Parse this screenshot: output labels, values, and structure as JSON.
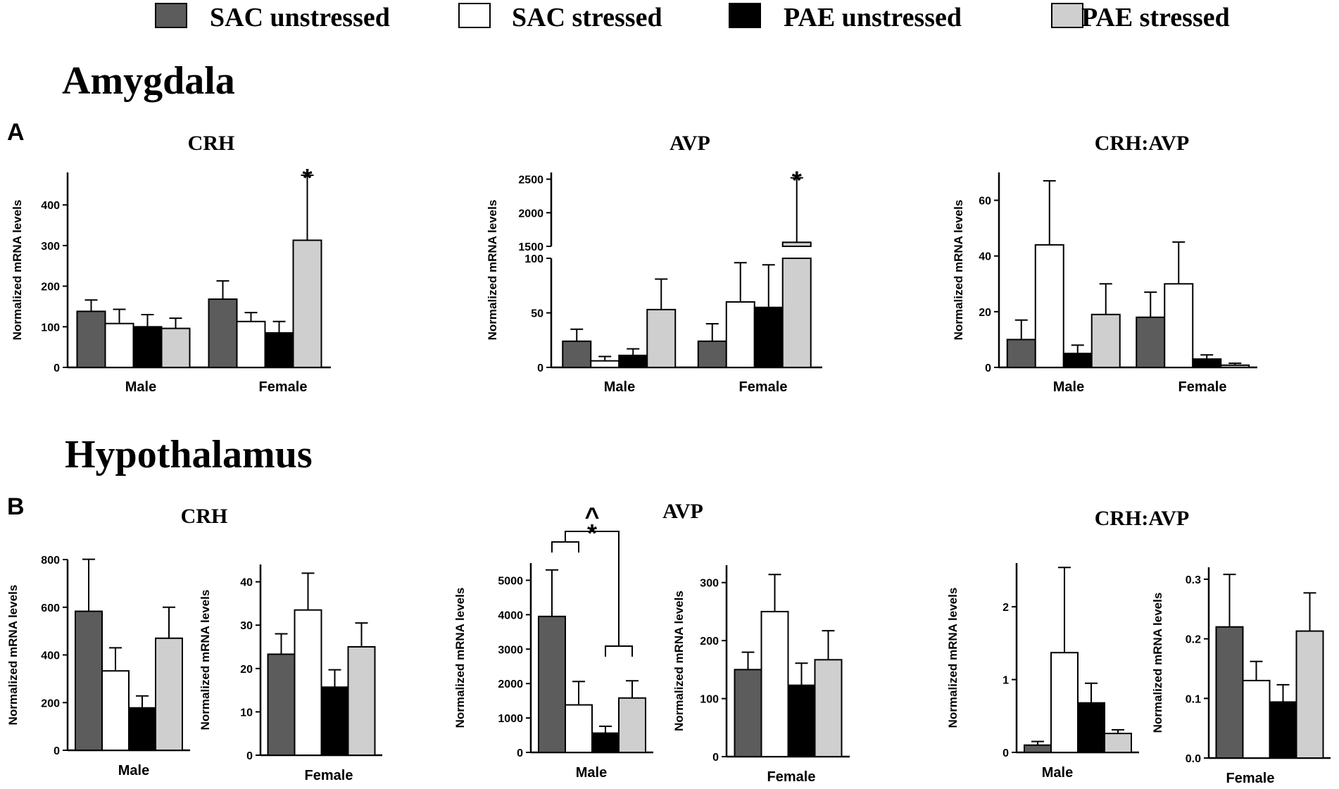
{
  "legend": {
    "items": [
      {
        "label": "SAC unstressed",
        "color": "#5c5c5c"
      },
      {
        "label": "SAC stressed",
        "color": "#ffffff"
      },
      {
        "label": "PAE unstressed",
        "color": "#000000"
      },
      {
        "label": "PAE stressed",
        "color": "#cfcfcf"
      }
    ]
  },
  "sections": {
    "a": {
      "title": "Amygdala",
      "letter": "A"
    },
    "b": {
      "title": "Hypothalamus",
      "letter": "B"
    }
  },
  "chart_data": [
    {
      "id": "a-crh",
      "type": "bar",
      "title": "CRH",
      "ylabel": "Normalized mRNA levels",
      "ylim": [
        0,
        480
      ],
      "yticks": [
        0,
        100,
        200,
        300,
        400
      ],
      "categories": [
        "Male",
        "Female"
      ],
      "series": [
        {
          "name": "SAC unstressed",
          "values": [
            138,
            168
          ],
          "errors": [
            28,
            45
          ]
        },
        {
          "name": "SAC stressed",
          "values": [
            108,
            113
          ],
          "errors": [
            35,
            22
          ]
        },
        {
          "name": "PAE unstressed",
          "values": [
            100,
            85
          ],
          "errors": [
            30,
            28
          ]
        },
        {
          "name": "PAE stressed",
          "values": [
            96,
            313
          ],
          "errors": [
            25,
            160
          ]
        }
      ],
      "annotations": [
        {
          "text": "*",
          "category": 1,
          "series": 3
        }
      ]
    },
    {
      "id": "a-avp",
      "type": "bar",
      "title": "AVP",
      "ylabel": "Normalized mRNA levels",
      "broken_axis": true,
      "lower_range": [
        0,
        100
      ],
      "upper_range": [
        1500,
        2600
      ],
      "yticks_lower": [
        0,
        50,
        100
      ],
      "yticks_upper": [
        1500,
        2000,
        2500
      ],
      "categories": [
        "Male",
        "Female"
      ],
      "series": [
        {
          "name": "SAC unstressed",
          "values": [
            24,
            24
          ],
          "errors": [
            11,
            16
          ]
        },
        {
          "name": "SAC stressed",
          "values": [
            6,
            60
          ],
          "errors": [
            4,
            36
          ]
        },
        {
          "name": "PAE unstressed",
          "values": [
            11,
            55
          ],
          "errors": [
            6,
            39
          ]
        },
        {
          "name": "PAE stressed",
          "values": [
            53,
            1560
          ],
          "errors": [
            28,
            960
          ]
        }
      ],
      "annotations": [
        {
          "text": "*",
          "category": 1,
          "series": 3
        }
      ]
    },
    {
      "id": "a-ratio",
      "type": "bar",
      "title": "CRH:AVP",
      "ylabel": "Normalized mRNA levels",
      "ylim": [
        0,
        70
      ],
      "yticks": [
        0,
        20,
        40,
        60
      ],
      "categories": [
        "Male",
        "Female"
      ],
      "series": [
        {
          "name": "SAC unstressed",
          "values": [
            10,
            18
          ],
          "errors": [
            7,
            9
          ]
        },
        {
          "name": "SAC stressed",
          "values": [
            44,
            30
          ],
          "errors": [
            23,
            15
          ]
        },
        {
          "name": "PAE unstressed",
          "values": [
            5,
            3
          ],
          "errors": [
            3,
            1.5
          ]
        },
        {
          "name": "PAE stressed",
          "values": [
            19,
            0.8
          ],
          "errors": [
            11,
            0.7
          ]
        }
      ]
    },
    {
      "id": "b-crh-m",
      "type": "bar",
      "title": "CRH",
      "ylabel": "Normalized mRNA levels",
      "ylim": [
        0,
        800
      ],
      "yticks": [
        0,
        200,
        400,
        600,
        800
      ],
      "categories": [
        "Male"
      ],
      "series": [
        {
          "name": "SAC unstressed",
          "values": [
            583
          ],
          "errors": [
            218
          ]
        },
        {
          "name": "SAC stressed",
          "values": [
            333
          ],
          "errors": [
            97
          ]
        },
        {
          "name": "PAE unstressed",
          "values": [
            178
          ],
          "errors": [
            50
          ]
        },
        {
          "name": "PAE stressed",
          "values": [
            470
          ],
          "errors": [
            130
          ]
        }
      ]
    },
    {
      "id": "b-crh-f",
      "type": "bar",
      "title": "",
      "ylabel": "Normalized mRNA levels",
      "ylim": [
        0,
        44
      ],
      "yticks": [
        0,
        10,
        20,
        30,
        40
      ],
      "categories": [
        "Female"
      ],
      "series": [
        {
          "name": "SAC unstressed",
          "values": [
            23.3
          ],
          "errors": [
            4.7
          ]
        },
        {
          "name": "SAC stressed",
          "values": [
            33.5
          ],
          "errors": [
            8.5
          ]
        },
        {
          "name": "PAE unstressed",
          "values": [
            15.7
          ],
          "errors": [
            4
          ]
        },
        {
          "name": "PAE stressed",
          "values": [
            25
          ],
          "errors": [
            5.5
          ]
        }
      ]
    },
    {
      "id": "b-avp-m",
      "type": "bar",
      "title": "AVP",
      "ylabel": "Normalized mRNA levels",
      "ylim": [
        0,
        5500
      ],
      "yticks": [
        0,
        1000,
        2000,
        3000,
        4000,
        5000
      ],
      "categories": [
        "Male"
      ],
      "series": [
        {
          "name": "SAC unstressed",
          "values": [
            3950
          ],
          "errors": [
            1350
          ]
        },
        {
          "name": "SAC stressed",
          "values": [
            1380
          ],
          "errors": [
            680
          ]
        },
        {
          "name": "PAE unstressed",
          "values": [
            560
          ],
          "errors": [
            200
          ]
        },
        {
          "name": "PAE stressed",
          "values": [
            1580
          ],
          "errors": [
            500
          ]
        }
      ],
      "annotations": [
        {
          "text": "^",
          "position": "above bracket"
        },
        {
          "text": "*",
          "position": "above bracket"
        }
      ]
    },
    {
      "id": "b-avp-f",
      "type": "bar",
      "title": "",
      "ylabel": "Normalized mRNA levels",
      "ylim": [
        0,
        330
      ],
      "yticks": [
        0,
        100,
        200,
        300
      ],
      "categories": [
        "Female"
      ],
      "series": [
        {
          "name": "SAC unstressed",
          "values": [
            150
          ],
          "errors": [
            30
          ]
        },
        {
          "name": "SAC stressed",
          "values": [
            250
          ],
          "errors": [
            64
          ]
        },
        {
          "name": "PAE unstressed",
          "values": [
            123
          ],
          "errors": [
            38
          ]
        },
        {
          "name": "PAE stressed",
          "values": [
            167
          ],
          "errors": [
            50
          ]
        }
      ]
    },
    {
      "id": "b-ratio-m",
      "type": "bar",
      "title": "CRH:AVP",
      "ylabel": "Normalized mRNA levels",
      "ylim": [
        0,
        2.6
      ],
      "yticks": [
        0,
        1,
        2
      ],
      "categories": [
        "Male"
      ],
      "series": [
        {
          "name": "SAC unstressed",
          "values": [
            0.1
          ],
          "errors": [
            0.05
          ]
        },
        {
          "name": "SAC stressed",
          "values": [
            1.37
          ],
          "errors": [
            1.17
          ]
        },
        {
          "name": "PAE unstressed",
          "values": [
            0.68
          ],
          "errors": [
            0.27
          ]
        },
        {
          "name": "PAE stressed",
          "values": [
            0.26
          ],
          "errors": [
            0.05
          ]
        }
      ]
    },
    {
      "id": "b-ratio-f",
      "type": "bar",
      "title": "",
      "ylabel": "Normalized mRNA levels",
      "ylim": [
        0,
        0.32
      ],
      "yticks": [
        0.0,
        0.1,
        0.2,
        0.3
      ],
      "ytick_labels": [
        "0.0",
        "0.1",
        "0.2",
        "0.3"
      ],
      "categories": [
        "Female"
      ],
      "series": [
        {
          "name": "SAC unstressed",
          "values": [
            0.22
          ],
          "errors": [
            0.088
          ]
        },
        {
          "name": "SAC stressed",
          "values": [
            0.13
          ],
          "errors": [
            0.032
          ]
        },
        {
          "name": "PAE unstressed",
          "values": [
            0.094
          ],
          "errors": [
            0.029
          ]
        },
        {
          "name": "PAE stressed",
          "values": [
            0.213
          ],
          "errors": [
            0.064
          ]
        }
      ]
    }
  ]
}
